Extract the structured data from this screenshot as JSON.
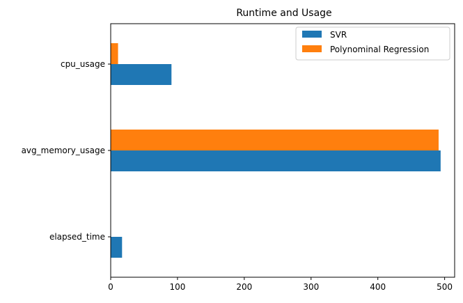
{
  "chart_data": {
    "type": "bar",
    "orientation": "horizontal",
    "title": "Runtime and Usage",
    "xlabel": "",
    "ylabel": "",
    "categories": [
      "elapsed_time",
      "avg_memory_usage",
      "cpu_usage"
    ],
    "series": [
      {
        "name": "SVR",
        "values": [
          17,
          494,
          91
        ],
        "color": "#1f77b4"
      },
      {
        "name": "Polynominal Regression",
        "values": [
          0,
          491,
          11
        ],
        "color": "#ff7f0e"
      }
    ],
    "xlim": [
      0,
      515
    ],
    "xticks": [
      "0",
      "100",
      "200",
      "300",
      "400",
      "500"
    ],
    "xtick_values": [
      0,
      100,
      200,
      300,
      400,
      500
    ],
    "grid": false,
    "legend_position": "top-right"
  }
}
